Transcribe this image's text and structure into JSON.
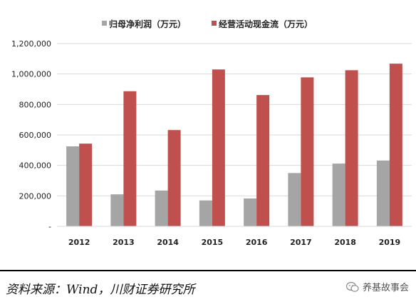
{
  "chart_data": {
    "type": "bar",
    "categories": [
      "2012",
      "2013",
      "2014",
      "2015",
      "2016",
      "2017",
      "2018",
      "2019"
    ],
    "series": [
      {
        "name": "归母净利润（万元）",
        "values": [
          525000,
          210000,
          235000,
          170000,
          183000,
          350000,
          412000,
          432000
        ]
      },
      {
        "name": "经营活动现金流（万元）",
        "values": [
          543000,
          887000,
          632000,
          1030000,
          862000,
          978000,
          1025000,
          1068000
        ]
      }
    ],
    "yticks": [
      "-",
      "200,000",
      "400,000",
      "600,000",
      "800,000",
      "1,000,000",
      "1,200,000"
    ],
    "ylim": [
      0,
      1200000
    ],
    "grid": true,
    "legend_position": "top",
    "colors": {
      "series1": "#A5A5A5",
      "series2": "#C0504D",
      "grid": "#D9D9D9"
    }
  },
  "source_text": "资料来源：Wind，川财证券研究所",
  "watermark_text": "养基故事会"
}
